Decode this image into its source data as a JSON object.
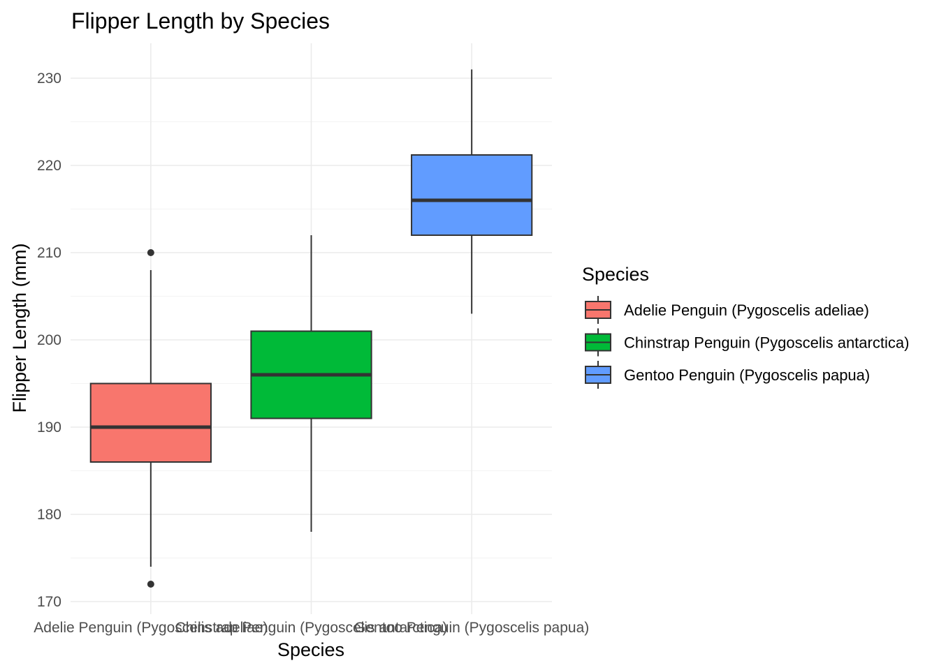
{
  "chart_data": {
    "type": "boxplot",
    "title": "Flipper Length by Species",
    "xlabel": "Species",
    "ylabel": "Flipper Length (mm)",
    "ylim": [
      168,
      234
    ],
    "yticks": [
      170,
      180,
      190,
      200,
      210,
      220,
      230
    ],
    "yticks_labels": [
      "170",
      "180",
      "190",
      "200",
      "210",
      "220",
      "230"
    ],
    "grid": true,
    "legend": {
      "title": "Species",
      "placement": "right"
    },
    "categories": [
      "Adelie Penguin (Pygoscelis adeliae)",
      "Chinstrap Penguin (Pygoscelis antarctica)",
      "Gentoo Penguin (Pygoscelis papua)"
    ],
    "series": [
      {
        "name": "Adelie Penguin (Pygoscelis adeliae)",
        "color": "#F8766D",
        "whisker_low": 174,
        "q1": 186,
        "median": 190,
        "q3": 195,
        "whisker_high": 208,
        "outliers": [
          172,
          210
        ]
      },
      {
        "name": "Chinstrap Penguin (Pygoscelis antarctica)",
        "color": "#00BA38",
        "whisker_low": 178,
        "q1": 191,
        "median": 196,
        "q3": 201,
        "whisker_high": 212,
        "outliers": []
      },
      {
        "name": "Gentoo Penguin (Pygoscelis papua)",
        "color": "#619CFF",
        "whisker_low": 203,
        "q1": 212,
        "median": 216,
        "q3": 221.2,
        "whisker_high": 231,
        "outliers": []
      }
    ]
  }
}
